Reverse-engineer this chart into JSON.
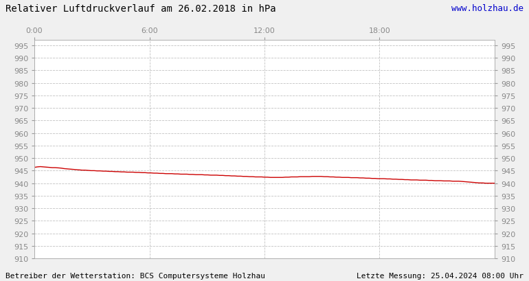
{
  "title": "Relativer Luftdruckverlauf am 26.02.2018 in hPa",
  "url_text": "www.holzhau.de",
  "footer_left": "Betreiber der Wetterstation: BCS Computersysteme Holzhau",
  "footer_right": "Letzte Messung: 25.04.2024 08:00 Uhr",
  "background_color": "#f0f0f0",
  "plot_bg_color": "#ffffff",
  "line_color": "#cc0000",
  "grid_color": "#bbbbbb",
  "ylim": [
    910,
    997
  ],
  "yticks": [
    910,
    915,
    920,
    925,
    930,
    935,
    940,
    945,
    950,
    955,
    960,
    965,
    970,
    975,
    980,
    985,
    990,
    995
  ],
  "xtick_labels": [
    "0:00",
    "6:00",
    "12:00",
    "18:00"
  ],
  "xtick_positions": [
    0,
    360,
    720,
    1080
  ],
  "xlim": [
    0,
    1440
  ],
  "title_fontsize": 10,
  "tick_fontsize": 8,
  "footer_fontsize": 8,
  "url_fontsize": 9,
  "pressure_data": [
    946.3,
    946.5,
    946.6,
    946.5,
    946.4,
    946.3,
    946.2,
    946.2,
    946.1,
    946.0,
    945.8,
    945.7,
    945.6,
    945.5,
    945.4,
    945.3,
    945.2,
    945.2,
    945.1,
    945.0,
    945.0,
    944.9,
    944.9,
    944.8,
    944.8,
    944.7,
    944.7,
    944.6,
    944.6,
    944.5,
    944.5,
    944.4,
    944.4,
    944.4,
    944.3,
    944.3,
    944.2,
    944.2,
    944.1,
    944.1,
    944.0,
    944.0,
    943.9,
    943.9,
    943.8,
    943.8,
    943.8,
    943.7,
    943.7,
    943.6,
    943.6,
    943.6,
    943.5,
    943.5,
    943.4,
    943.4,
    943.4,
    943.3,
    943.3,
    943.2,
    943.2,
    943.2,
    943.1,
    943.1,
    943.0,
    943.0,
    942.9,
    942.9,
    942.8,
    942.8,
    942.7,
    942.7,
    942.6,
    942.6,
    942.5,
    942.5,
    942.5,
    942.4,
    942.4,
    942.3,
    942.3,
    942.3,
    942.3,
    942.3,
    942.4,
    942.4,
    942.5,
    942.5,
    942.5,
    942.6,
    942.6,
    942.6,
    942.6,
    942.7,
    942.7,
    942.7,
    942.7,
    942.6,
    942.6,
    942.5,
    942.5,
    942.4,
    942.4,
    942.3,
    942.3,
    942.3,
    942.2,
    942.2,
    942.2,
    942.1,
    942.1,
    942.0,
    942.0,
    941.9,
    941.9,
    941.8,
    941.8,
    941.8,
    941.7,
    941.7,
    941.6,
    941.6,
    941.5,
    941.5,
    941.4,
    941.4,
    941.3,
    941.3,
    941.3,
    941.2,
    941.2,
    941.2,
    941.1,
    941.1,
    941.0,
    941.0,
    941.0,
    940.9,
    940.9,
    940.9,
    940.8,
    940.8,
    940.8,
    940.7,
    940.6,
    940.5,
    940.4,
    940.3,
    940.2,
    940.1,
    940.1,
    940.0,
    940.0,
    940.0,
    940.0
  ]
}
